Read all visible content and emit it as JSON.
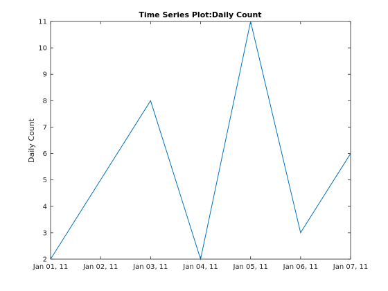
{
  "chart_data": {
    "type": "line",
    "title": "Time Series Plot:Daily Count",
    "xlabel": "",
    "ylabel": "Daily Count",
    "x": [
      "Jan 01, 11",
      "Jan 02, 11",
      "Jan 03, 11",
      "Jan 04, 11",
      "Jan 05, 11",
      "Jan 06, 11",
      "Jan 07, 11"
    ],
    "x_ticks": [
      "Jan 01, 11",
      "Jan 02, 11",
      "Jan 03, 11",
      "Jan 04, 11",
      "Jan 05, 11",
      "Jan 06, 11",
      "Jan 07, 11"
    ],
    "series": [
      {
        "values": [
          2,
          5,
          8,
          2,
          11,
          3,
          6
        ],
        "color": "#0072BD"
      }
    ],
    "ylim": [
      2,
      11
    ],
    "y_ticks": [
      2,
      3,
      4,
      5,
      6,
      7,
      8,
      9,
      10,
      11
    ],
    "grid": false,
    "legend": "none"
  }
}
